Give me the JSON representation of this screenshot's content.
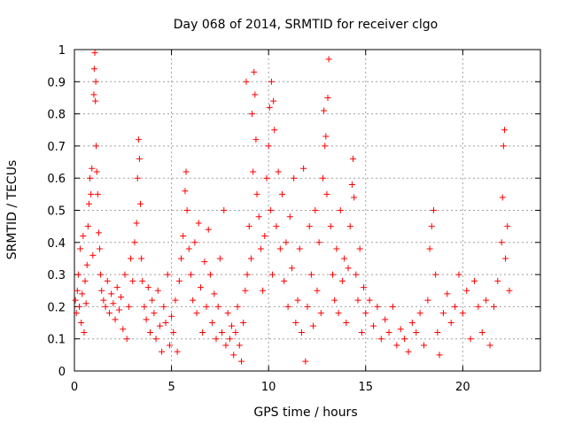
{
  "chart_data": {
    "type": "scatter",
    "title": "Day 068 of 2014, SRMTID for receiver clgo",
    "xlabel": "GPS time / hours",
    "ylabel": "SRMTID / TECUs",
    "xlim": [
      0,
      24
    ],
    "ylim": [
      0,
      1
    ],
    "xticks": [
      0,
      5,
      10,
      15,
      20
    ],
    "xtick_labels": [
      "0",
      "5",
      "10",
      "15",
      "20"
    ],
    "yticks": [
      0,
      0.1,
      0.2,
      0.3,
      0.4,
      0.5,
      0.6,
      0.7,
      0.8,
      0.9,
      1
    ],
    "ytick_labels": [
      "0",
      "0.1",
      "0.2",
      "0.3",
      "0.4",
      "0.5",
      "0.6",
      "0.7",
      "0.8",
      "0.9",
      "1"
    ],
    "grid": true,
    "marker": "+",
    "marker_color": "#ff0000",
    "series": [
      {
        "name": "SRMTID",
        "points": [
          [
            0.05,
            0.22
          ],
          [
            0.1,
            0.18
          ],
          [
            0.15,
            0.25
          ],
          [
            0.2,
            0.3
          ],
          [
            0.25,
            0.2
          ],
          [
            0.3,
            0.38
          ],
          [
            0.35,
            0.15
          ],
          [
            0.4,
            0.24
          ],
          [
            0.45,
            0.42
          ],
          [
            0.5,
            0.12
          ],
          [
            0.55,
            0.28
          ],
          [
            0.6,
            0.21
          ],
          [
            0.65,
            0.33
          ],
          [
            0.7,
            0.45
          ],
          [
            0.75,
            0.52
          ],
          [
            0.8,
            0.6
          ],
          [
            0.85,
            0.55
          ],
          [
            0.9,
            0.63
          ],
          [
            0.95,
            0.36
          ],
          [
            1.0,
            0.86
          ],
          [
            1.02,
            0.94
          ],
          [
            1.05,
            0.99
          ],
          [
            1.08,
            0.84
          ],
          [
            1.1,
            0.9
          ],
          [
            1.12,
            0.7
          ],
          [
            1.15,
            0.62
          ],
          [
            1.2,
            0.55
          ],
          [
            1.25,
            0.43
          ],
          [
            1.3,
            0.38
          ],
          [
            1.35,
            0.3
          ],
          [
            1.4,
            0.25
          ],
          [
            1.5,
            0.22
          ],
          [
            1.6,
            0.2
          ],
          [
            1.7,
            0.28
          ],
          [
            1.8,
            0.18
          ],
          [
            1.9,
            0.24
          ],
          [
            2.0,
            0.21
          ],
          [
            2.1,
            0.16
          ],
          [
            2.2,
            0.26
          ],
          [
            2.3,
            0.19
          ],
          [
            2.4,
            0.23
          ],
          [
            2.5,
            0.13
          ],
          [
            2.6,
            0.3
          ],
          [
            2.7,
            0.1
          ],
          [
            2.8,
            0.2
          ],
          [
            2.9,
            0.35
          ],
          [
            3.0,
            0.28
          ],
          [
            3.1,
            0.4
          ],
          [
            3.2,
            0.46
          ],
          [
            3.25,
            0.6
          ],
          [
            3.3,
            0.72
          ],
          [
            3.35,
            0.66
          ],
          [
            3.4,
            0.52
          ],
          [
            3.45,
            0.35
          ],
          [
            3.5,
            0.28
          ],
          [
            3.6,
            0.2
          ],
          [
            3.7,
            0.16
          ],
          [
            3.8,
            0.26
          ],
          [
            3.9,
            0.12
          ],
          [
            4.0,
            0.22
          ],
          [
            4.1,
            0.18
          ],
          [
            4.2,
            0.1
          ],
          [
            4.3,
            0.25
          ],
          [
            4.4,
            0.14
          ],
          [
            4.5,
            0.06
          ],
          [
            4.6,
            0.2
          ],
          [
            4.7,
            0.15
          ],
          [
            4.8,
            0.3
          ],
          [
            4.9,
            0.08
          ],
          [
            5.0,
            0.17
          ],
          [
            5.1,
            0.12
          ],
          [
            5.2,
            0.22
          ],
          [
            5.3,
            0.06
          ],
          [
            5.4,
            0.28
          ],
          [
            5.5,
            0.35
          ],
          [
            5.6,
            0.42
          ],
          [
            5.7,
            0.56
          ],
          [
            5.75,
            0.62
          ],
          [
            5.8,
            0.5
          ],
          [
            5.9,
            0.38
          ],
          [
            6.0,
            0.3
          ],
          [
            6.1,
            0.22
          ],
          [
            6.2,
            0.4
          ],
          [
            6.3,
            0.18
          ],
          [
            6.4,
            0.46
          ],
          [
            6.5,
            0.26
          ],
          [
            6.6,
            0.12
          ],
          [
            6.7,
            0.34
          ],
          [
            6.8,
            0.2
          ],
          [
            6.9,
            0.44
          ],
          [
            7.0,
            0.3
          ],
          [
            7.1,
            0.15
          ],
          [
            7.2,
            0.24
          ],
          [
            7.3,
            0.1
          ],
          [
            7.4,
            0.2
          ],
          [
            7.5,
            0.35
          ],
          [
            7.6,
            0.12
          ],
          [
            7.7,
            0.5
          ],
          [
            7.8,
            0.08
          ],
          [
            7.9,
            0.18
          ],
          [
            8.0,
            0.1
          ],
          [
            8.1,
            0.14
          ],
          [
            8.2,
            0.05
          ],
          [
            8.3,
            0.12
          ],
          [
            8.4,
            0.2
          ],
          [
            8.5,
            0.08
          ],
          [
            8.6,
            0.03
          ],
          [
            8.7,
            0.15
          ],
          [
            8.8,
            0.25
          ],
          [
            8.85,
            0.9
          ],
          [
            8.9,
            0.3
          ],
          [
            9.0,
            0.45
          ],
          [
            9.1,
            0.35
          ],
          [
            9.15,
            0.8
          ],
          [
            9.2,
            0.62
          ],
          [
            9.25,
            0.93
          ],
          [
            9.3,
            0.86
          ],
          [
            9.35,
            0.72
          ],
          [
            9.4,
            0.55
          ],
          [
            9.5,
            0.48
          ],
          [
            9.6,
            0.38
          ],
          [
            9.7,
            0.25
          ],
          [
            9.8,
            0.42
          ],
          [
            9.9,
            0.6
          ],
          [
            10.0,
            0.7
          ],
          [
            10.05,
            0.82
          ],
          [
            10.1,
            0.5
          ],
          [
            10.15,
            0.9
          ],
          [
            10.2,
            0.3
          ],
          [
            10.25,
            0.84
          ],
          [
            10.3,
            0.75
          ],
          [
            10.4,
            0.45
          ],
          [
            10.5,
            0.62
          ],
          [
            10.6,
            0.38
          ],
          [
            10.7,
            0.55
          ],
          [
            10.8,
            0.28
          ],
          [
            10.9,
            0.4
          ],
          [
            11.0,
            0.2
          ],
          [
            11.1,
            0.48
          ],
          [
            11.2,
            0.32
          ],
          [
            11.3,
            0.6
          ],
          [
            11.4,
            0.15
          ],
          [
            11.5,
            0.22
          ],
          [
            11.6,
            0.38
          ],
          [
            11.7,
            0.12
          ],
          [
            11.8,
            0.63
          ],
          [
            11.9,
            0.03
          ],
          [
            12.0,
            0.2
          ],
          [
            12.1,
            0.45
          ],
          [
            12.2,
            0.3
          ],
          [
            12.3,
            0.14
          ],
          [
            12.4,
            0.5
          ],
          [
            12.5,
            0.25
          ],
          [
            12.6,
            0.4
          ],
          [
            12.7,
            0.18
          ],
          [
            12.8,
            0.6
          ],
          [
            12.85,
            0.81
          ],
          [
            12.9,
            0.7
          ],
          [
            12.95,
            0.73
          ],
          [
            13.0,
            0.55
          ],
          [
            13.05,
            0.85
          ],
          [
            13.1,
            0.97
          ],
          [
            13.2,
            0.45
          ],
          [
            13.3,
            0.3
          ],
          [
            13.4,
            0.22
          ],
          [
            13.5,
            0.38
          ],
          [
            13.6,
            0.18
          ],
          [
            13.7,
            0.5
          ],
          [
            13.8,
            0.28
          ],
          [
            13.9,
            0.35
          ],
          [
            14.0,
            0.15
          ],
          [
            14.1,
            0.32
          ],
          [
            14.2,
            0.45
          ],
          [
            14.3,
            0.58
          ],
          [
            14.35,
            0.66
          ],
          [
            14.4,
            0.54
          ],
          [
            14.5,
            0.3
          ],
          [
            14.6,
            0.22
          ],
          [
            14.7,
            0.38
          ],
          [
            14.8,
            0.12
          ],
          [
            14.9,
            0.26
          ],
          [
            15.0,
            0.18
          ],
          [
            15.2,
            0.22
          ],
          [
            15.4,
            0.14
          ],
          [
            15.6,
            0.2
          ],
          [
            15.8,
            0.1
          ],
          [
            16.0,
            0.16
          ],
          [
            16.2,
            0.12
          ],
          [
            16.4,
            0.2
          ],
          [
            16.6,
            0.08
          ],
          [
            16.8,
            0.13
          ],
          [
            17.0,
            0.1
          ],
          [
            17.2,
            0.06
          ],
          [
            17.4,
            0.15
          ],
          [
            17.6,
            0.12
          ],
          [
            17.8,
            0.18
          ],
          [
            18.0,
            0.08
          ],
          [
            18.2,
            0.22
          ],
          [
            18.3,
            0.38
          ],
          [
            18.4,
            0.45
          ],
          [
            18.5,
            0.5
          ],
          [
            18.6,
            0.3
          ],
          [
            18.7,
            0.12
          ],
          [
            18.8,
            0.05
          ],
          [
            19.0,
            0.18
          ],
          [
            19.2,
            0.24
          ],
          [
            19.4,
            0.15
          ],
          [
            19.6,
            0.2
          ],
          [
            19.8,
            0.3
          ],
          [
            20.0,
            0.18
          ],
          [
            20.2,
            0.25
          ],
          [
            20.4,
            0.1
          ],
          [
            20.6,
            0.28
          ],
          [
            20.8,
            0.2
          ],
          [
            21.0,
            0.12
          ],
          [
            21.2,
            0.22
          ],
          [
            21.4,
            0.08
          ],
          [
            21.6,
            0.2
          ],
          [
            21.8,
            0.28
          ],
          [
            22.0,
            0.4
          ],
          [
            22.05,
            0.54
          ],
          [
            22.1,
            0.7
          ],
          [
            22.15,
            0.75
          ],
          [
            22.2,
            0.35
          ],
          [
            22.3,
            0.45
          ],
          [
            22.4,
            0.25
          ]
        ]
      }
    ]
  }
}
